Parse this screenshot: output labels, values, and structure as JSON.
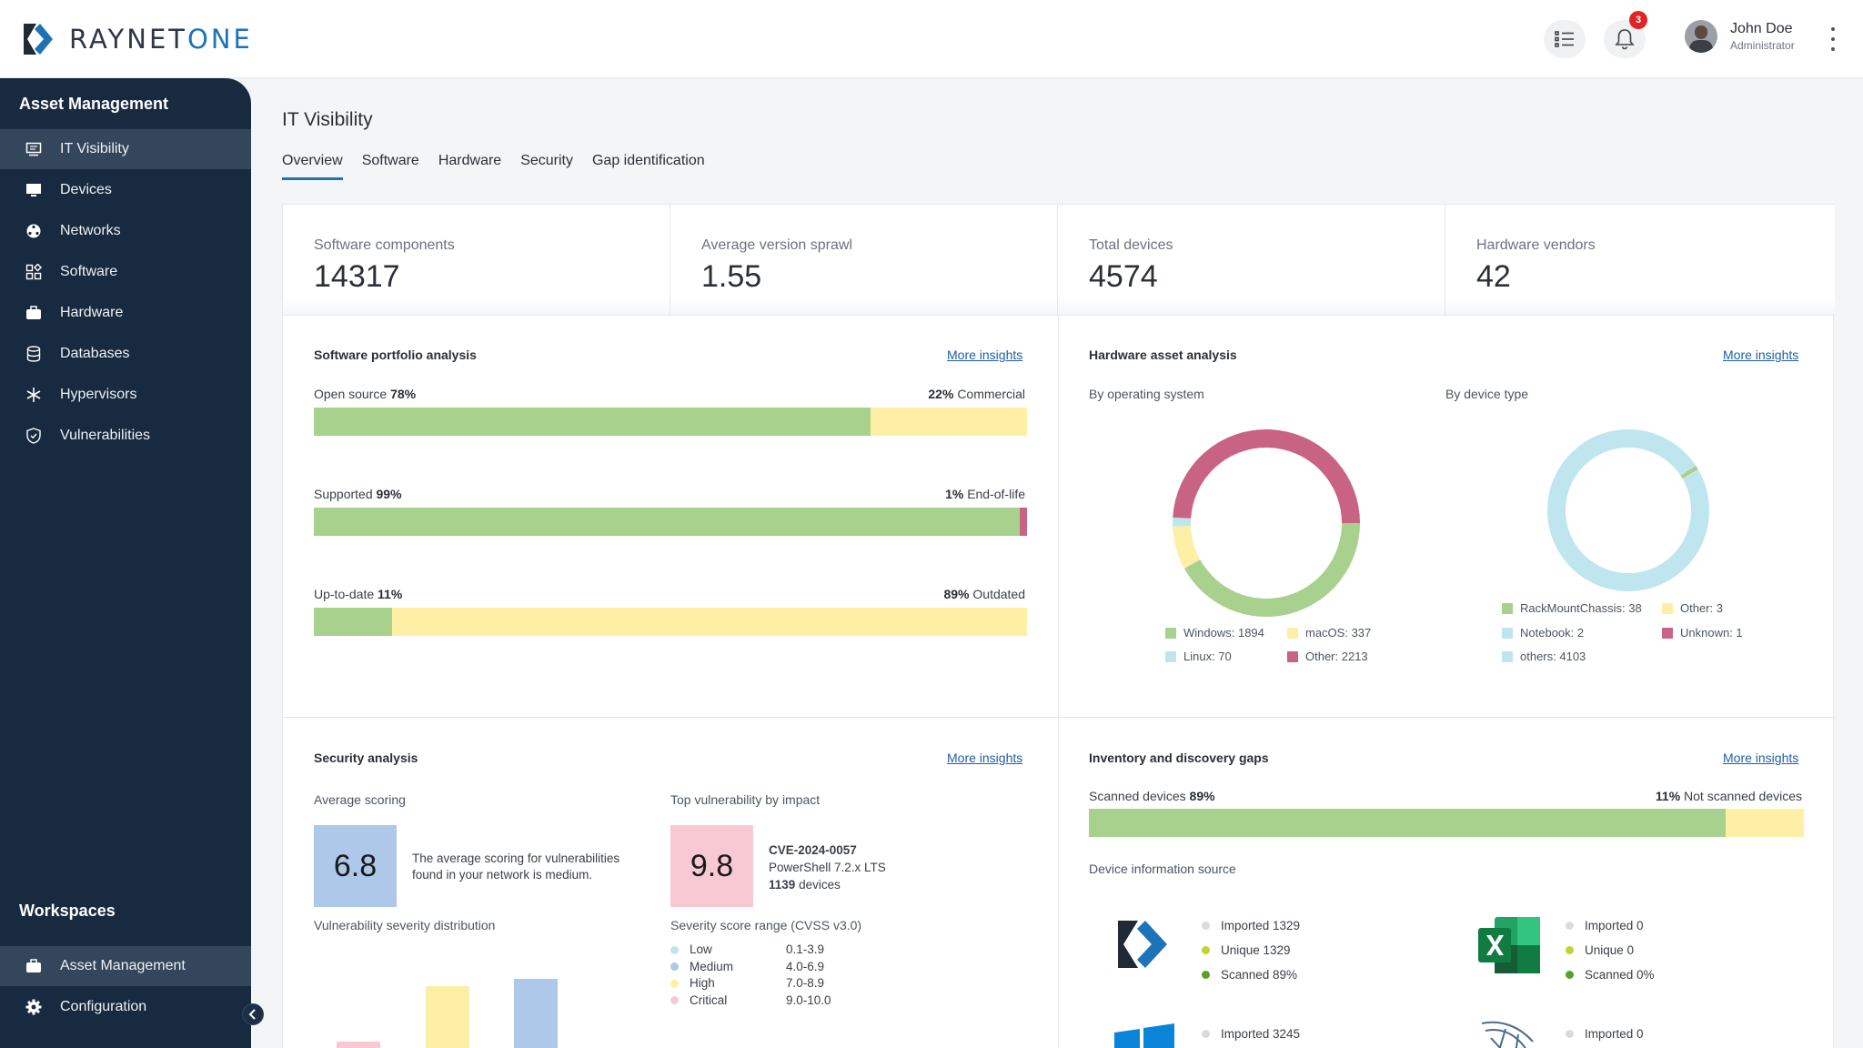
{
  "header": {
    "brand_prefix": "RAYNET",
    "brand_suffix": "ONE",
    "notification_count": "3",
    "user_name": "John Doe",
    "user_role": "Administrator"
  },
  "sidebar": {
    "section_title": "Asset Management",
    "items": [
      {
        "label": "IT Visibility",
        "icon": "monitor-chart-icon"
      },
      {
        "label": "Devices",
        "icon": "desktop-icon"
      },
      {
        "label": "Networks",
        "icon": "network-icon"
      },
      {
        "label": "Software",
        "icon": "apps-icon"
      },
      {
        "label": "Hardware",
        "icon": "toolbox-icon"
      },
      {
        "label": "Databases",
        "icon": "database-icon"
      },
      {
        "label": "Hypervisors",
        "icon": "snowflake-icon"
      },
      {
        "label": "Vulnerabilities",
        "icon": "shield-icon"
      }
    ],
    "workspaces_title": "Workspaces",
    "workspaces": [
      {
        "label": "Asset Management",
        "icon": "briefcase-icon"
      },
      {
        "label": "Configuration",
        "icon": "gear-icon"
      }
    ]
  },
  "page": {
    "title": "IT Visibility",
    "tabs": [
      "Overview",
      "Software",
      "Hardware",
      "Security",
      "Gap identification"
    ]
  },
  "kpis": [
    {
      "label": "Software components",
      "value": "14317"
    },
    {
      "label": "Average version sprawl",
      "value": "1.55"
    },
    {
      "label": "Total devices",
      "value": "4574"
    },
    {
      "label": "Hardware vendors",
      "value": "42"
    }
  ],
  "software_portfolio": {
    "title": "Software portfolio analysis",
    "link": "More insights",
    "bars": [
      {
        "left_label": "Open source",
        "left_pct": "78%",
        "right_pct": "22%",
        "right_label": "Commercial",
        "left_value": 78,
        "left_color": "#a9d18e",
        "right_color": "#fdf0a6"
      },
      {
        "left_label": "Supported",
        "left_pct": "99%",
        "right_pct": "1%",
        "right_label": "End-of-life",
        "left_value": 99,
        "left_color": "#a9d18e",
        "right_color": "#c96384"
      },
      {
        "left_label": "Up-to-date",
        "left_pct": "11%",
        "right_pct": "89%",
        "right_label": "Outdated",
        "left_value": 11,
        "left_color": "#a9d18e",
        "right_color": "#fdf0a6"
      }
    ]
  },
  "hardware_assets": {
    "title": "Hardware asset analysis",
    "link": "More insights",
    "os_subtitle": "By operating system",
    "type_subtitle": "By device type",
    "os_legend": [
      {
        "label": "Windows: 1894",
        "value": 1894,
        "color": "#a9d18e"
      },
      {
        "label": "macOS: 337",
        "value": 337,
        "color": "#fdf0a6"
      },
      {
        "label": "Linux: 70",
        "value": 70,
        "color": "#bfe6ee"
      },
      {
        "label": "Other: 2213",
        "value": 2213,
        "color": "#c96384"
      }
    ],
    "type_legend": [
      {
        "label": "RackMountChassis: 38",
        "value": 38,
        "color": "#a9d18e"
      },
      {
        "label": "Other: 3",
        "value": 3,
        "color": "#fdf0a6"
      },
      {
        "label": "Notebook: 2",
        "value": 2,
        "color": "#bfe6ee"
      },
      {
        "label": "Unknown: 1",
        "value": 1,
        "color": "#c96384"
      },
      {
        "label": "others: 4103",
        "value": 4103,
        "color": "#bfe6ee"
      }
    ]
  },
  "security": {
    "title": "Security analysis",
    "link": "More insights",
    "avg_label": "Average scoring",
    "avg_score": "6.8",
    "avg_color": "#adc8e8",
    "avg_desc_1": "The average scoring for vulnerabilities",
    "avg_desc_2": "found in your network is medium.",
    "top_label": "Top vulnerability by impact",
    "top_score": "9.8",
    "top_color": "#f8c9d3",
    "cve": "CVE-2024-0057",
    "product": "PowerShell 7.2.x LTS",
    "device_count": "1139",
    "device_suffix": "devices",
    "dist_label": "Vulnerability severity distribution",
    "range_label": "Severity score range (CVSS v3.0)",
    "ranges": [
      {
        "name": "Low",
        "range": "0.1-3.9",
        "color": "#bfe6ee"
      },
      {
        "name": "Medium",
        "range": "4.0-6.9",
        "color": "#adc8e8"
      },
      {
        "name": "High",
        "range": "7.0-8.9",
        "color": "#fdf0a6"
      },
      {
        "name": "Critical",
        "range": "9.0-10.0",
        "color": "#f8c9d3"
      }
    ]
  },
  "inventory": {
    "title": "Inventory and discovery gaps",
    "link": "More insights",
    "left_label": "Scanned devices",
    "left_pct": "89%",
    "right_pct": "11%",
    "right_label": "Not scanned devices",
    "left_value": 89,
    "source_label": "Device information source",
    "sources": [
      {
        "name": "raynet-logo-icon",
        "imported": "Imported 1329",
        "unique": "Unique 1329",
        "scanned": "Scanned 89%"
      },
      {
        "name": "excel-icon",
        "imported": "Imported 0",
        "unique": "Unique 0",
        "scanned": "Scanned 0%"
      },
      {
        "name": "windows-icon",
        "imported": "Imported 3245"
      },
      {
        "name": "sql-server-icon",
        "imported": "Imported 0"
      }
    ]
  }
}
